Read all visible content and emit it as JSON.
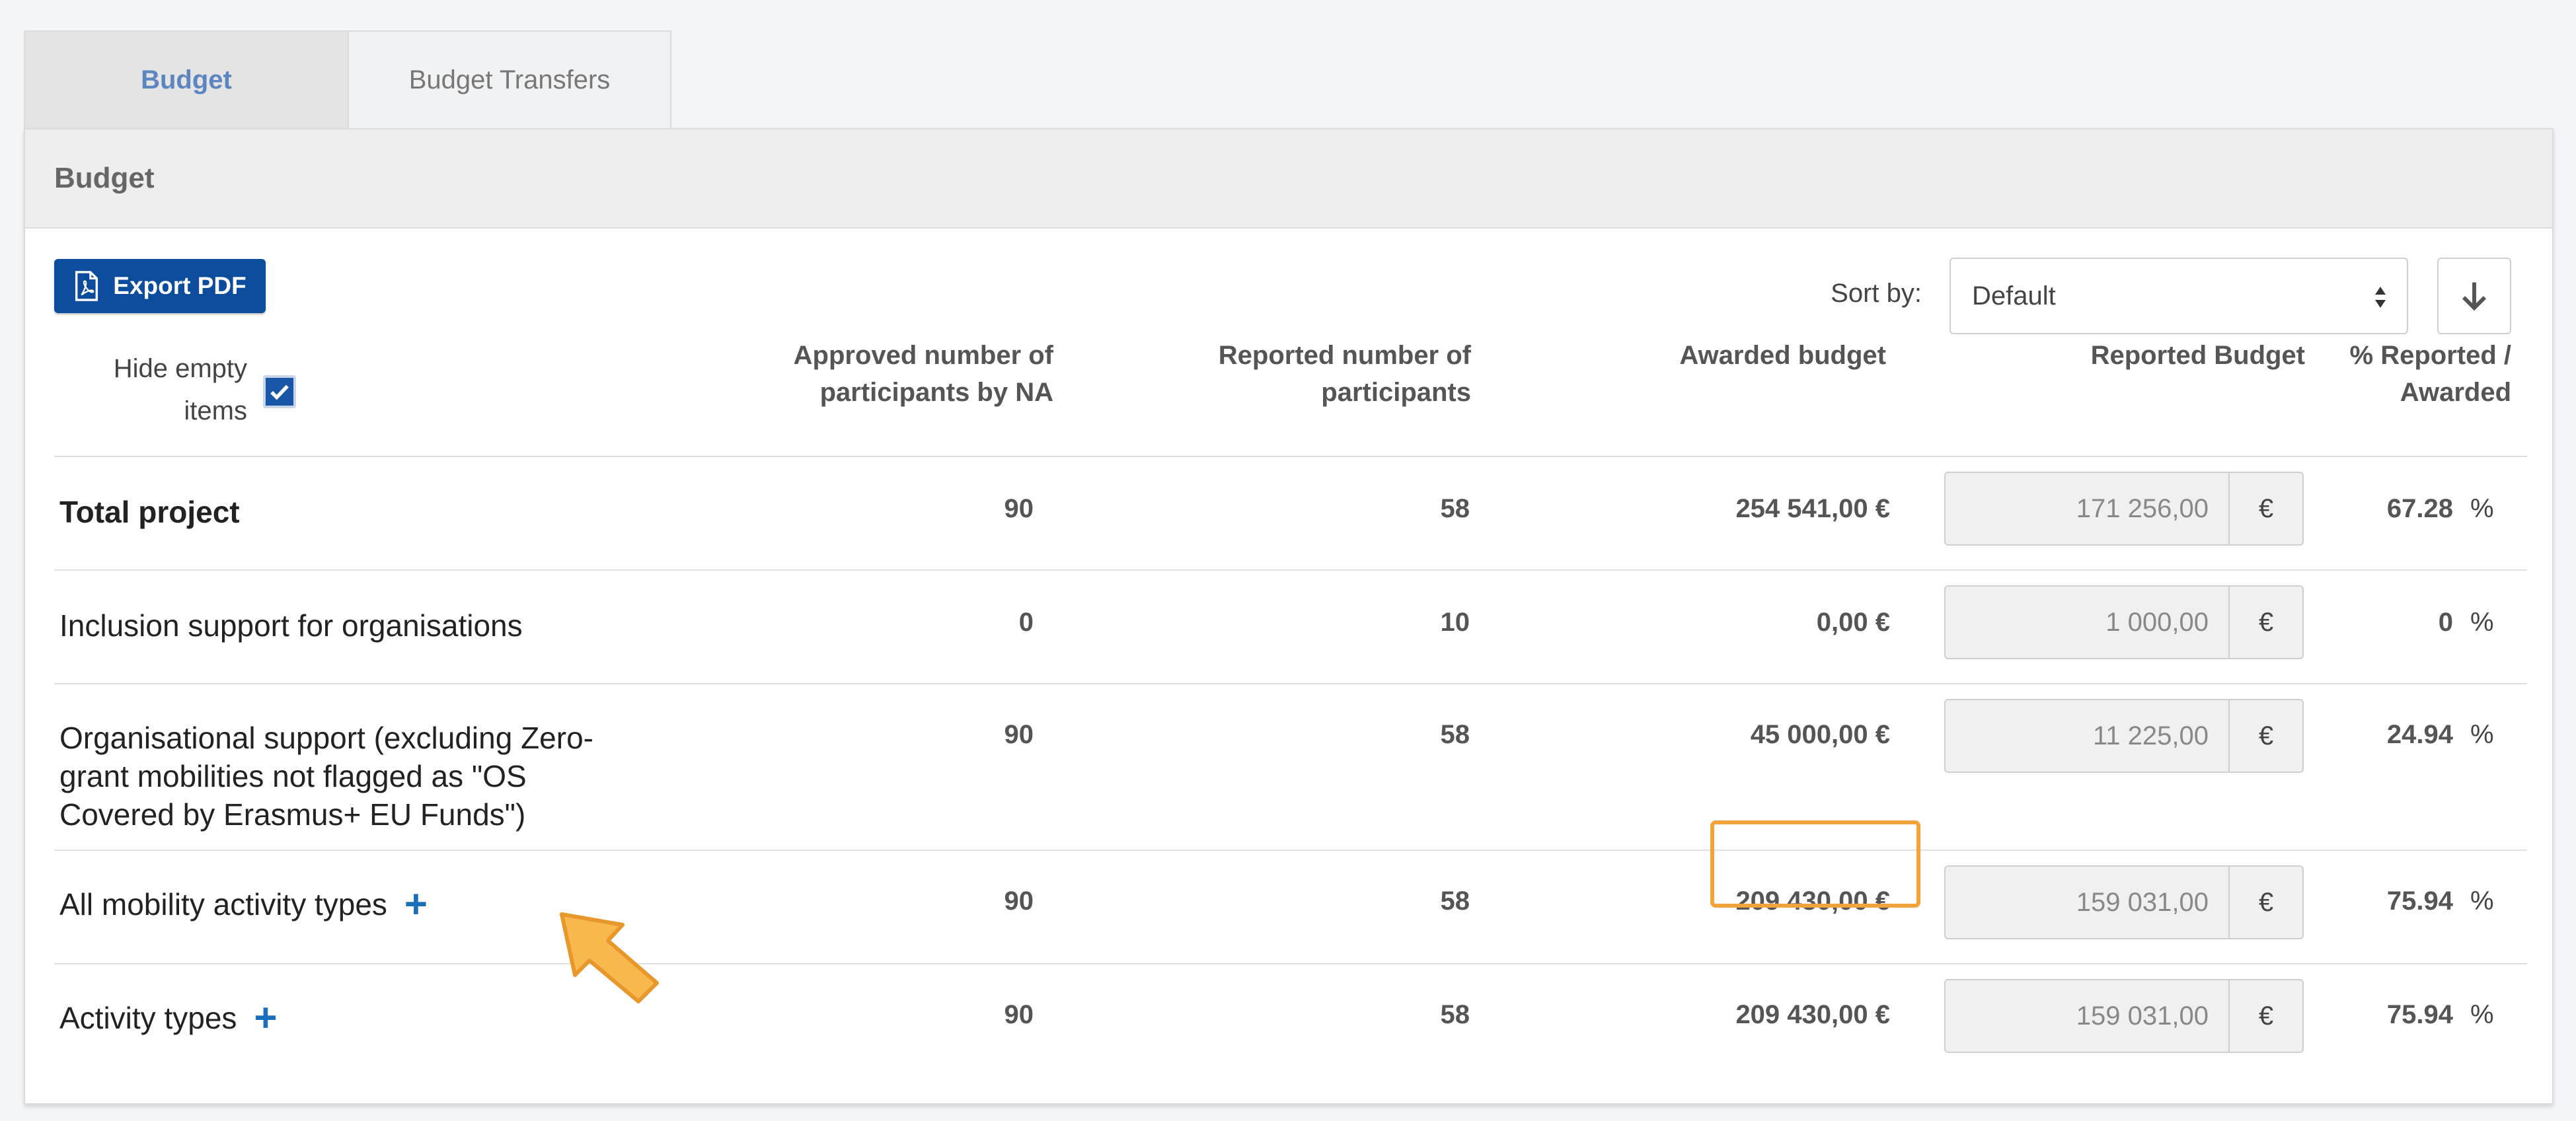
{
  "tabs": [
    {
      "label": "Budget",
      "active": true
    },
    {
      "label": "Budget Transfers",
      "active": false
    }
  ],
  "panel": {
    "title": "Budget"
  },
  "toolbar": {
    "export_label": "Export PDF",
    "hide_empty_label_1": "Hide empty",
    "hide_empty_label_2": "items",
    "hide_empty_checked": true,
    "sort_label": "Sort by:",
    "sort_value": "Default"
  },
  "columns": {
    "approved_1": "Approved number of",
    "approved_2": "participants by NA",
    "reported_1": "Reported number of",
    "reported_2": "participants",
    "awarded": "Awarded budget",
    "reported_budget": "Reported Budget",
    "pct_1": "% Reported /",
    "pct_2": "Awarded"
  },
  "currency": "€",
  "percent": "%",
  "rows": [
    {
      "label": "Total project",
      "approved": "90",
      "reported": "58",
      "awarded": "254 541,00 €",
      "reported_budget": "171 256,00",
      "pct": "67.28"
    },
    {
      "label": "Inclusion support for organisations",
      "approved": "0",
      "reported": "10",
      "awarded": "0,00 €",
      "reported_budget": "1 000,00",
      "pct": "0"
    },
    {
      "label_1": "Organisational support (excluding Zero-",
      "label_2": "grant mobilities not flagged as \"OS",
      "label_3": "Covered by Erasmus+ EU Funds\")",
      "approved": "90",
      "reported": "58",
      "awarded": "45 000,00 €",
      "reported_budget": "11 225,00",
      "pct": "24.94"
    },
    {
      "label": "All mobility activity types",
      "approved": "90",
      "reported": "58",
      "awarded": "209 430,00 €",
      "reported_budget": "159 031,00",
      "pct": "75.94"
    },
    {
      "label": "Activity types",
      "approved": "90",
      "reported": "58",
      "awarded": "209 430,00 €",
      "reported_budget": "159 031,00",
      "pct": "75.94"
    }
  ],
  "icons": {
    "export": "pdf-file-icon",
    "sort_select": "sort-arrows-icon",
    "sort_direction": "arrow-down-icon",
    "expand": "plus-icon",
    "annotation": "pointer-arrow-icon"
  },
  "colors": {
    "primary": "#0b4c9c",
    "active_tab_text": "#5b86c0",
    "plus": "#1a6fba",
    "highlight": "#f2a33c",
    "annotation_arrow": "#f7b94d"
  }
}
